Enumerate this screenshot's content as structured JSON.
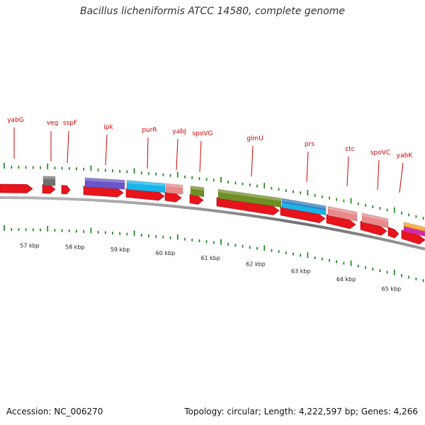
{
  "title": "Bacillus licheniformis ATCC 14580, complete genome",
  "footer": {
    "accession": "Accession: NC_006270",
    "genome_stats": "Topology: circular; Length: 4,222,597 bp; Genes: 4,266"
  },
  "colors": {
    "cds_arrow": "#e8141b",
    "gene_label": "#cc0000",
    "tick_mark": "#2b8a2b",
    "backbone": "#6e6e6e"
  },
  "kbp_labels": [
    "57 kbp",
    "58 kbp",
    "59 kbp",
    "60 kbp",
    "61 kbp",
    "62 kbp",
    "63 kbp",
    "64 kbp",
    "65 kbp"
  ],
  "genes": [
    {
      "name": "yabG",
      "category": "",
      "color": ""
    },
    {
      "name": "veg",
      "category": "gray",
      "color": "#707070"
    },
    {
      "name": "sspF",
      "category": "",
      "color": ""
    },
    {
      "name": "ipk",
      "category": "purple",
      "color": "#6a55c8"
    },
    {
      "name": "purR",
      "category": "cyan",
      "color": "#19b4e8"
    },
    {
      "name": "yabJ",
      "category": "pink",
      "color": "#e88a8a"
    },
    {
      "name": "spoVG",
      "category": "olive",
      "color": "#6f8f25"
    },
    {
      "name": "glmU",
      "category": "olive",
      "color": "#6f8f25"
    },
    {
      "name": "prs",
      "category": "blue-cyan",
      "color": "#2f7fbf"
    },
    {
      "name": "ctc",
      "category": "pink",
      "color": "#e88a8a"
    },
    {
      "name": "spoVC",
      "category": "pink",
      "color": "#e88a8a"
    },
    {
      "name": "yabK",
      "category": "orange-magenta",
      "color": "#f0a020"
    }
  ]
}
